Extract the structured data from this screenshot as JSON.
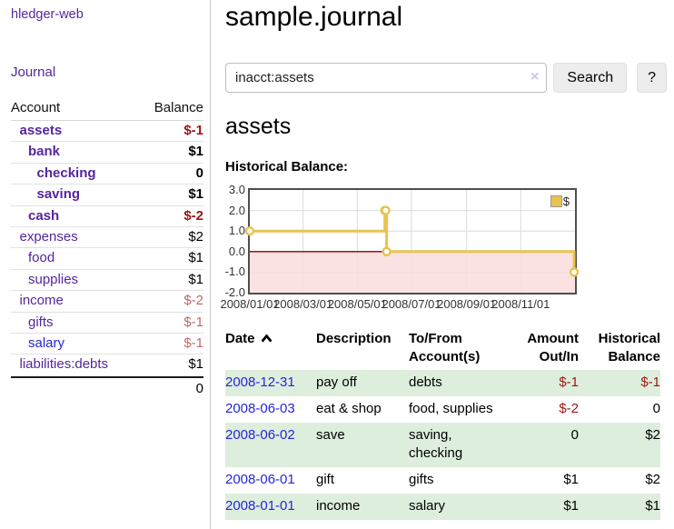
{
  "app": {
    "brand": "hledger-web"
  },
  "colors": {
    "accent_purple": "#55269b",
    "link_blue": "#2626d8",
    "negative": "#9e1414",
    "negative_muted": "#c26868",
    "row_green": "#ddeedd",
    "chart_line_gold": "#e8c44f",
    "chart_negative_fill": "#fadddd",
    "zero_line": "#8b0000"
  },
  "sidebar": {
    "nav_journal": "Journal",
    "accounts_table": {
      "headers": {
        "account": "Account",
        "balance": "Balance"
      },
      "rows": [
        {
          "name": "assets",
          "indent": 1,
          "bold": true,
          "link_color": "purple",
          "balance": "$-1",
          "balance_tone": "neg"
        },
        {
          "name": "bank",
          "indent": 2,
          "bold": true,
          "link_color": "purple",
          "balance": "$1",
          "balance_tone": "pos"
        },
        {
          "name": "checking",
          "indent": 3,
          "bold": true,
          "link_color": "purple",
          "balance": "0",
          "balance_tone": "pos"
        },
        {
          "name": "saving",
          "indent": 3,
          "bold": true,
          "link_color": "purple",
          "balance": "$1",
          "balance_tone": "pos"
        },
        {
          "name": "cash",
          "indent": 2,
          "bold": true,
          "link_color": "purple",
          "balance": "$-2",
          "balance_tone": "neg"
        },
        {
          "name": "expenses",
          "indent": 1,
          "bold": false,
          "link_color": "purple",
          "balance": "$2",
          "balance_tone": "pos"
        },
        {
          "name": "food",
          "indent": 2,
          "bold": false,
          "link_color": "purple",
          "balance": "$1",
          "balance_tone": "pos"
        },
        {
          "name": "supplies",
          "indent": 2,
          "bold": false,
          "link_color": "purple",
          "balance": "$1",
          "balance_tone": "pos"
        },
        {
          "name": "income",
          "indent": 1,
          "bold": false,
          "link_color": "purple",
          "balance": "$-2",
          "balance_tone": "neg-muted"
        },
        {
          "name": "gifts",
          "indent": 2,
          "bold": false,
          "link_color": "purple",
          "balance": "$-1",
          "balance_tone": "neg-muted"
        },
        {
          "name": "salary",
          "indent": 2,
          "bold": false,
          "link_color": "blue",
          "balance": "$-1",
          "balance_tone": "neg-muted"
        },
        {
          "name": "liabilities:debts",
          "indent": 1,
          "bold": false,
          "link_color": "purple",
          "balance": "$1",
          "balance_tone": "pos"
        }
      ],
      "total": "0"
    }
  },
  "main": {
    "title": "sample.journal",
    "search": {
      "value": "inacct:assets",
      "clear_icon": "×",
      "search_button": "Search",
      "help_button": "?"
    },
    "account_heading": "assets",
    "chart_heading": "Historical Balance:"
  },
  "chart_data": {
    "type": "line",
    "subtype": "step",
    "title": "Historical Balance:",
    "x_range": [
      "2008/01/01",
      "2009/01/01"
    ],
    "ylim": [
      -2,
      3
    ],
    "y_ticks": [
      3.0,
      2.0,
      1.0,
      0.0,
      -1.0,
      -2.0
    ],
    "x_ticks": [
      "2008/01/01",
      "2008/03/01",
      "2008/05/01",
      "2008/07/01",
      "2008/09/01",
      "2008/11/01"
    ],
    "grid": true,
    "legend": {
      "label": "$",
      "position": "top-right"
    },
    "series": [
      {
        "name": "$",
        "points": [
          {
            "date": "2008/01/01",
            "value": 1
          },
          {
            "date": "2008/06/01",
            "value": 2
          },
          {
            "date": "2008/06/02",
            "value": 2
          },
          {
            "date": "2008/06/03",
            "value": 0
          },
          {
            "date": "2008/12/31",
            "value": -1
          }
        ]
      }
    ]
  },
  "register": {
    "columns": [
      {
        "label": "Date",
        "sorted": "ascending"
      },
      {
        "label": "Description"
      },
      {
        "label": "To/From Account(s)"
      },
      {
        "label": "Amount Out/In",
        "align": "right"
      },
      {
        "label": "Historical Balance",
        "align": "right"
      }
    ],
    "rows": [
      {
        "date": "2008-12-31",
        "description": "pay off",
        "accounts": "debts",
        "amount": "$-1",
        "amount_tone": "neg",
        "balance": "$-1",
        "balance_tone": "neg",
        "shaded": true
      },
      {
        "date": "2008-06-03",
        "description": "eat & shop",
        "accounts": "food, supplies",
        "amount": "$-2",
        "amount_tone": "neg",
        "balance": "0",
        "balance_tone": "pos",
        "shaded": false
      },
      {
        "date": "2008-06-02",
        "description": "save",
        "accounts": "saving, checking",
        "amount": "0",
        "amount_tone": "pos",
        "balance": "$2",
        "balance_tone": "pos",
        "shaded": true
      },
      {
        "date": "2008-06-01",
        "description": "gift",
        "accounts": "gifts",
        "amount": "$1",
        "amount_tone": "pos",
        "balance": "$2",
        "balance_tone": "pos",
        "shaded": false
      },
      {
        "date": "2008-01-01",
        "description": "income",
        "accounts": "salary",
        "amount": "$1",
        "amount_tone": "pos",
        "balance": "$1",
        "balance_tone": "pos",
        "shaded": true
      }
    ]
  }
}
